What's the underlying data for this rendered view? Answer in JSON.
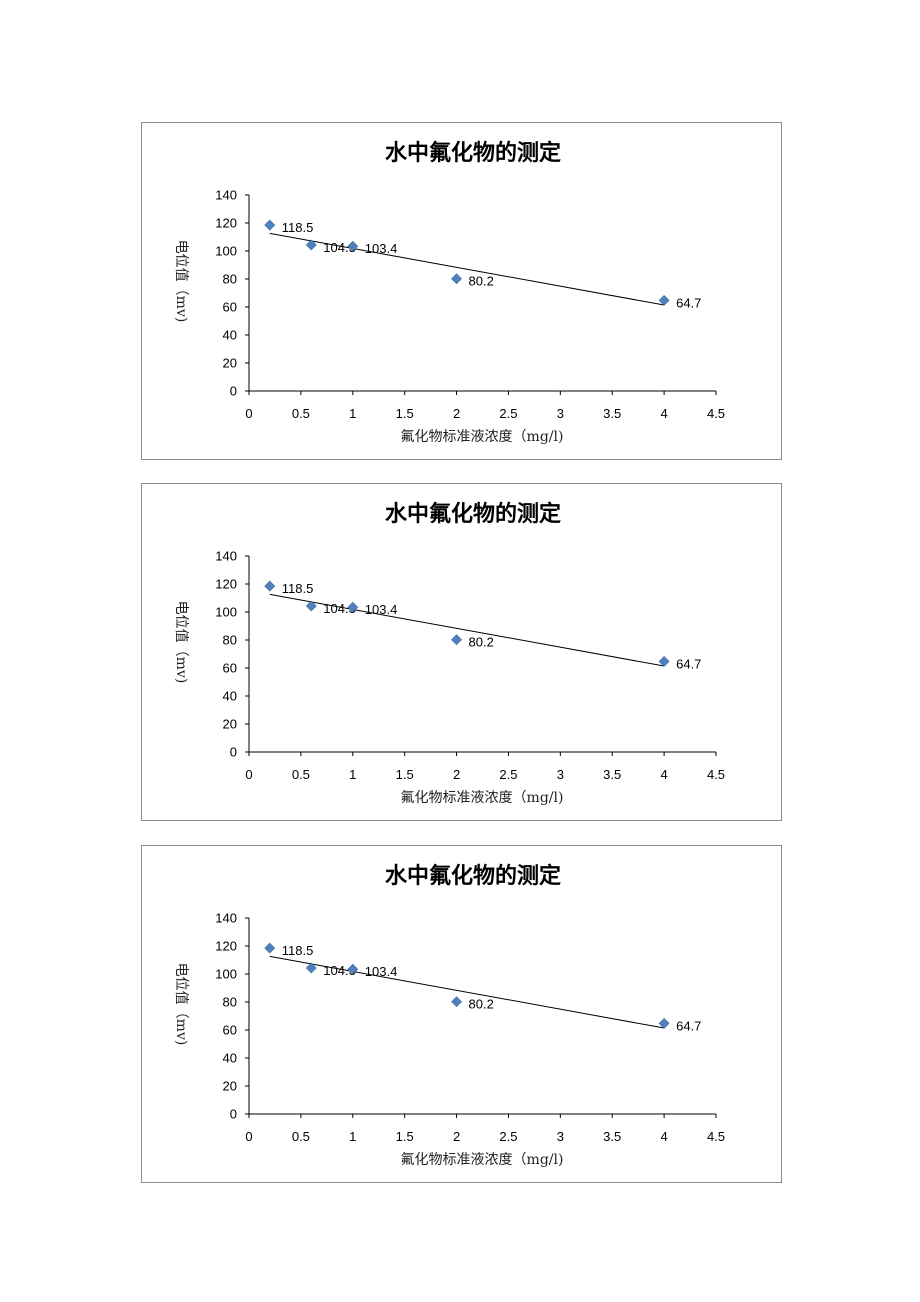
{
  "chart_data": [
    {
      "type": "scatter",
      "title": "水中氟化物的测定",
      "xlabel": "氟化物标准液浓度（mg/l)",
      "ylabel": "电位值（mv)",
      "xlim": [
        0,
        4.5
      ],
      "ylim": [
        0,
        140
      ],
      "x_ticks": [
        "0",
        "0.5",
        "1",
        "1.5",
        "2",
        "2.5",
        "3",
        "3.5",
        "4",
        "4.5"
      ],
      "y_ticks": [
        "0",
        "20",
        "40",
        "60",
        "80",
        "100",
        "120",
        "140"
      ],
      "marker_color": "#4f81bd",
      "trendline": {
        "type": "linear",
        "x": [
          0.2,
          4.0
        ],
        "y": [
          112.6,
          61.4
        ],
        "color": "#000000"
      },
      "legend": "none",
      "grid": false,
      "points": [
        {
          "x": 0.2,
          "y": 118.5,
          "label": "118.5"
        },
        {
          "x": 0.6,
          "y": 104.3,
          "label": "104.3"
        },
        {
          "x": 1.0,
          "y": 103.4,
          "label": "103.4"
        },
        {
          "x": 2.0,
          "y": 80.2,
          "label": "80.2"
        },
        {
          "x": 4.0,
          "y": 64.7,
          "label": "64.7"
        }
      ]
    },
    {
      "type": "scatter",
      "title": "水中氟化物的测定",
      "xlabel": "氟化物标准液浓度（mg/l)",
      "ylabel": "电位值（mv)",
      "xlim": [
        0,
        4.5
      ],
      "ylim": [
        0,
        140
      ],
      "x_ticks": [
        "0",
        "0.5",
        "1",
        "1.5",
        "2",
        "2.5",
        "3",
        "3.5",
        "4",
        "4.5"
      ],
      "y_ticks": [
        "0",
        "20",
        "40",
        "60",
        "80",
        "100",
        "120",
        "140"
      ],
      "marker_color": "#4f81bd",
      "trendline": {
        "type": "linear",
        "x": [
          0.2,
          4.0
        ],
        "y": [
          112.6,
          61.4
        ],
        "color": "#000000"
      },
      "legend": "none",
      "grid": false,
      "points": [
        {
          "x": 0.2,
          "y": 118.5,
          "label": "118.5"
        },
        {
          "x": 0.6,
          "y": 104.3,
          "label": "104.3"
        },
        {
          "x": 1.0,
          "y": 103.4,
          "label": "103.4"
        },
        {
          "x": 2.0,
          "y": 80.2,
          "label": "80.2"
        },
        {
          "x": 4.0,
          "y": 64.7,
          "label": "64.7"
        }
      ]
    },
    {
      "type": "scatter",
      "title": "水中氟化物的测定",
      "xlabel": "氟化物标准液浓度（mg/l)",
      "ylabel": "电位值（mv)",
      "xlim": [
        0,
        4.5
      ],
      "ylim": [
        0,
        140
      ],
      "x_ticks": [
        "0",
        "0.5",
        "1",
        "1.5",
        "2",
        "2.5",
        "3",
        "3.5",
        "4",
        "4.5"
      ],
      "y_ticks": [
        "0",
        "20",
        "40",
        "60",
        "80",
        "100",
        "120",
        "140"
      ],
      "marker_color": "#4f81bd",
      "trendline": {
        "type": "linear",
        "x": [
          0.2,
          4.0
        ],
        "y": [
          112.6,
          61.4
        ],
        "color": "#000000"
      },
      "legend": "none",
      "grid": false,
      "points": [
        {
          "x": 0.2,
          "y": 118.5,
          "label": "118.5"
        },
        {
          "x": 0.6,
          "y": 104.3,
          "label": "104.3"
        },
        {
          "x": 1.0,
          "y": 103.4,
          "label": "103.4"
        },
        {
          "x": 2.0,
          "y": 80.2,
          "label": "80.2"
        },
        {
          "x": 4.0,
          "y": 64.7,
          "label": "64.7"
        }
      ]
    }
  ]
}
